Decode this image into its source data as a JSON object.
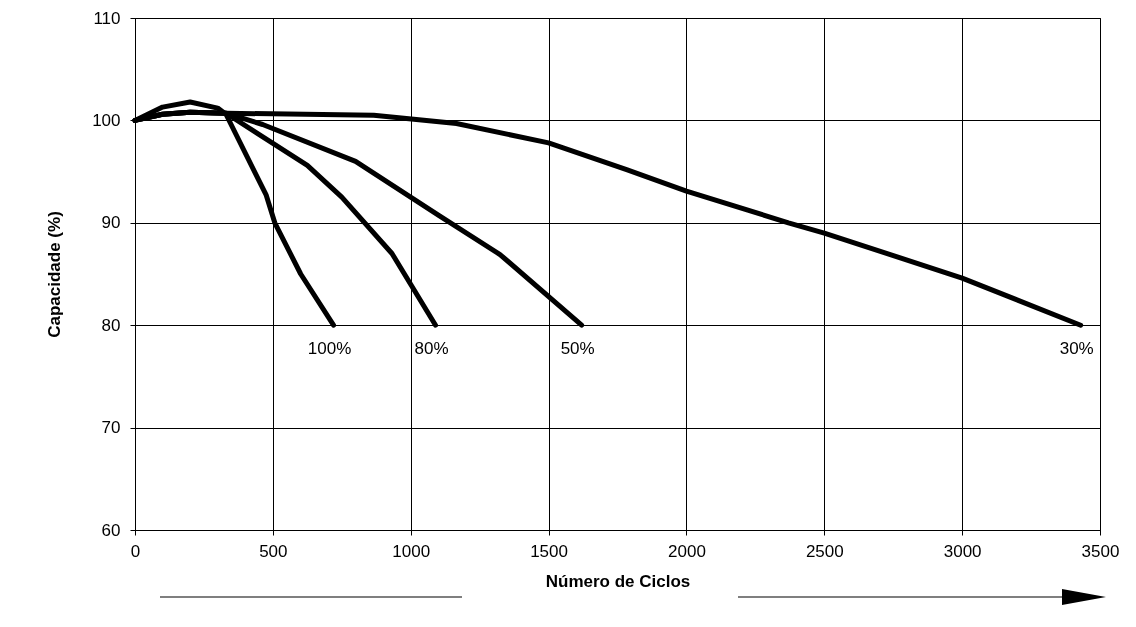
{
  "chart_data": {
    "type": "line",
    "xlabel": "Número de Ciclos",
    "ylabel": "Capacidade (%)",
    "xlim": [
      0,
      3500
    ],
    "xticks": [
      0,
      500,
      1000,
      1500,
      2000,
      2500,
      3000,
      3500
    ],
    "ylim": [
      60,
      110
    ],
    "yticks": [
      60,
      70,
      80,
      90,
      100,
      110
    ],
    "grid": true,
    "marker": "none",
    "line_style": "solid",
    "series": [
      {
        "name": "100%",
        "color": "#000000",
        "x": [
          0,
          100,
          200,
          300,
          330,
          476,
          507,
          601,
          720
        ],
        "values": [
          100,
          101.3,
          101.8,
          101.2,
          100.6,
          92.7,
          90,
          85,
          80
        ]
      },
      {
        "name": "80%",
        "color": "#000000",
        "x": [
          0,
          100,
          200,
          330,
          625,
          750,
          932,
          1090
        ],
        "values": [
          100,
          100.6,
          100.8,
          100.7,
          95.6,
          92.5,
          87,
          80
        ]
      },
      {
        "name": "50%",
        "color": "#000000",
        "x": [
          0,
          100,
          200,
          330,
          463,
          800,
          1103,
          1324,
          1620
        ],
        "values": [
          100,
          100.6,
          100.8,
          100.7,
          99.6,
          96,
          90.7,
          86.9,
          80
        ]
      },
      {
        "name": "30%",
        "color": "#000000",
        "x": [
          0,
          100,
          200,
          330,
          866,
          1166,
          1500,
          1783,
          2000,
          2370,
          2500,
          3000,
          3430
        ],
        "values": [
          100,
          100.6,
          100.8,
          100.7,
          100.5,
          99.7,
          97.8,
          95.2,
          93.1,
          90,
          89,
          84.6,
          80
        ]
      }
    ]
  }
}
